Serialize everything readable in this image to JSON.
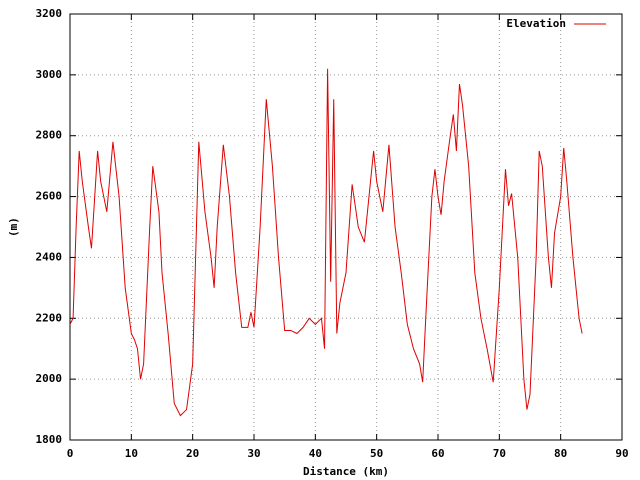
{
  "chart_data": {
    "type": "line",
    "xlabel": "Distance (km)",
    "ylabel": "(m)",
    "x": [
      0,
      0.5,
      1,
      1.5,
      2,
      3,
      3.5,
      4.5,
      5,
      6,
      7,
      8,
      9,
      10,
      10.5,
      11,
      11.5,
      12,
      13,
      13.5,
      14.5,
      15,
      16,
      17,
      18,
      19,
      20,
      21,
      22,
      23,
      23.5,
      24,
      25,
      26,
      27,
      28,
      29,
      29.5,
      30,
      31,
      32,
      33,
      34,
      35,
      36,
      37,
      38,
      39,
      40,
      41,
      41.5,
      42,
      42.5,
      43,
      43.5,
      44,
      45,
      46,
      47,
      48,
      49,
      49.5,
      50,
      51,
      52,
      53,
      54,
      55,
      56,
      57,
      57.5,
      58,
      59,
      59.5,
      60,
      60.5,
      61,
      62,
      62.5,
      63,
      63.5,
      64,
      65,
      66,
      67,
      68,
      69,
      70,
      71,
      71.5,
      72,
      73,
      74,
      74.5,
      75,
      76,
      76.5,
      77,
      78,
      78.5,
      79,
      80,
      80.5,
      81,
      82,
      83,
      83.5
    ],
    "series": [
      {
        "name": "Elevation",
        "color": "#e00000",
        "values": [
          2180,
          2200,
          2500,
          2750,
          2650,
          2500,
          2430,
          2750,
          2650,
          2550,
          2780,
          2600,
          2300,
          2150,
          2130,
          2100,
          2000,
          2050,
          2500,
          2700,
          2550,
          2350,
          2150,
          1920,
          1880,
          1900,
          2050,
          2780,
          2550,
          2400,
          2300,
          2500,
          2770,
          2600,
          2350,
          2170,
          2170,
          2220,
          2170,
          2500,
          2920,
          2700,
          2400,
          2160,
          2160,
          2150,
          2170,
          2200,
          2180,
          2200,
          2100,
          3020,
          2320,
          2920,
          2150,
          2250,
          2350,
          2640,
          2500,
          2450,
          2650,
          2750,
          2650,
          2550,
          2770,
          2500,
          2350,
          2180,
          2100,
          2050,
          1990,
          2200,
          2600,
          2690,
          2600,
          2540,
          2650,
          2800,
          2870,
          2750,
          2970,
          2900,
          2700,
          2350,
          2200,
          2100,
          1990,
          2300,
          2690,
          2570,
          2610,
          2400,
          2000,
          1900,
          1950,
          2400,
          2750,
          2700,
          2400,
          2300,
          2480,
          2600,
          2760,
          2650,
          2400,
          2200,
          2150
        ]
      }
    ],
    "xlim": [
      0,
      90
    ],
    "xticks": [
      0,
      10,
      20,
      30,
      40,
      50,
      60,
      70,
      80,
      90
    ],
    "ylim": [
      1800,
      3200
    ],
    "yticks": [
      1800,
      2000,
      2200,
      2400,
      2600,
      2800,
      3000,
      3200
    ],
    "grid": true,
    "legend": "top-right"
  }
}
